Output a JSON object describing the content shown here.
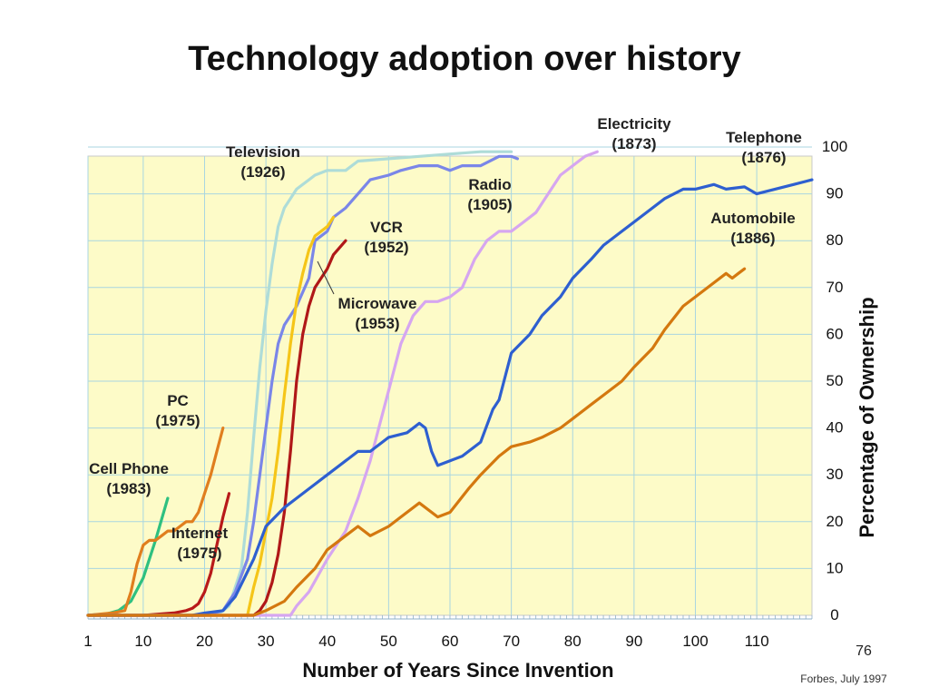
{
  "chart_data": {
    "type": "line",
    "title": "Technology adoption over history",
    "xlabel": "Number of Years Since Invention",
    "ylabel": "Percentage of Ownership",
    "xlim": [
      1,
      119
    ],
    "ylim": [
      0,
      100
    ],
    "x_ticks": [
      1,
      10,
      20,
      30,
      40,
      50,
      60,
      70,
      80,
      90,
      100,
      110
    ],
    "y_ticks": [
      0,
      10,
      20,
      30,
      40,
      50,
      60,
      70,
      80,
      90,
      100
    ],
    "grid": true,
    "background": "#fdfbc8",
    "series": [
      {
        "name": "Cell Phone",
        "year": "(1983)",
        "color": "#2ec080",
        "x": [
          1,
          4,
          6,
          8,
          10,
          12,
          14
        ],
        "y": [
          0,
          0.3,
          1,
          3,
          8,
          16,
          25
        ]
      },
      {
        "name": "PC",
        "year": "(1975)",
        "color": "#e07e1e",
        "x": [
          1,
          5,
          7,
          8,
          9,
          10,
          11,
          12,
          13,
          14,
          15,
          16,
          17,
          18,
          19,
          20,
          21,
          22,
          23
        ],
        "y": [
          0,
          0.5,
          1,
          5,
          11,
          15,
          16,
          16,
          17,
          18,
          18,
          19,
          20,
          20,
          22,
          26,
          30,
          35,
          40
        ]
      },
      {
        "name": "Internet",
        "year": "(1975)",
        "color": "#b81a1a",
        "x": [
          1,
          10,
          15,
          17,
          18,
          19,
          20,
          21,
          22,
          23,
          24
        ],
        "y": [
          0,
          0,
          0.5,
          1,
          1.5,
          2.5,
          5,
          9,
          15,
          21,
          26
        ]
      },
      {
        "name": "Television",
        "year": "(1926)",
        "color": "#aedcd8",
        "x": [
          1,
          22,
          24,
          26,
          27,
          28,
          29,
          30,
          31,
          32,
          33,
          34,
          35,
          37,
          38,
          40,
          43,
          45,
          50,
          55,
          60,
          65,
          70
        ],
        "y": [
          0,
          0,
          2,
          10,
          22,
          38,
          53,
          65,
          75,
          83,
          87,
          89,
          91,
          93,
          94,
          95,
          95,
          97,
          97.5,
          98,
          98.5,
          99,
          99
        ]
      },
      {
        "name": "Radio",
        "year": "(1905)",
        "color": "#7a86e8",
        "x": [
          1,
          20,
          23,
          25,
          27,
          28,
          29,
          30,
          31,
          32,
          33,
          35,
          37,
          38,
          40,
          41,
          43,
          45,
          47,
          50,
          52,
          55,
          58,
          60,
          62,
          65,
          68,
          70,
          71
        ],
        "y": [
          0,
          0,
          1,
          5,
          12,
          20,
          30,
          40,
          50,
          58,
          62,
          66,
          72,
          80,
          82,
          85,
          87,
          90,
          93,
          94,
          95,
          96,
          96,
          95,
          96,
          96,
          98,
          98,
          97.5
        ]
      },
      {
        "name": "VCR",
        "year": "(1952)",
        "color": "#f5c518",
        "x": [
          1,
          27,
          28,
          29,
          30,
          31,
          32,
          33,
          34,
          35,
          36,
          37,
          38,
          40,
          41
        ],
        "y": [
          0,
          0,
          6,
          11,
          18,
          25,
          35,
          47,
          58,
          67,
          73,
          78,
          81,
          83,
          85
        ]
      },
      {
        "name": "Microwave",
        "year": "(1953)",
        "color": "#b01818",
        "x": [
          1,
          28,
          29,
          30,
          31,
          32,
          33,
          34,
          35,
          36,
          37,
          38,
          40,
          41,
          43
        ],
        "y": [
          0,
          0,
          1,
          3,
          7,
          13,
          22,
          35,
          50,
          60,
          66,
          70,
          74,
          77,
          80
        ]
      },
      {
        "name": "Electricity",
        "year": "(1873)",
        "color": "#d6a6f0",
        "x": [
          1,
          34,
          35,
          37,
          40,
          43,
          45,
          47,
          48,
          50,
          52,
          54,
          56,
          58,
          60,
          62,
          64,
          66,
          68,
          70,
          72,
          74,
          76,
          78,
          80,
          82,
          84
        ],
        "y": [
          0,
          0,
          2,
          5,
          12,
          18,
          25,
          33,
          38,
          48,
          58,
          64,
          67,
          67,
          68,
          70,
          76,
          80,
          82,
          82,
          84,
          86,
          90,
          94,
          96,
          98,
          99
        ]
      },
      {
        "name": "Telephone",
        "year": "(1876)",
        "color": "#2e5fd0",
        "x": [
          1,
          18,
          20,
          23,
          25,
          28,
          30,
          33,
          35,
          38,
          40,
          43,
          45,
          47,
          50,
          53,
          55,
          56,
          57,
          58,
          60,
          62,
          65,
          67,
          68,
          70,
          73,
          75,
          78,
          80,
          83,
          85,
          88,
          90,
          93,
          95,
          98,
          100,
          103,
          105,
          108,
          110,
          113,
          116,
          119
        ],
        "y": [
          0,
          0,
          0.5,
          1,
          4,
          12,
          19,
          23,
          25,
          28,
          30,
          33,
          35,
          35,
          38,
          39,
          41,
          40,
          35,
          32,
          33,
          34,
          37,
          44,
          46,
          56,
          60,
          64,
          68,
          72,
          76,
          79,
          82,
          84,
          87,
          89,
          91,
          91,
          92,
          91,
          91.5,
          90,
          91,
          92,
          93
        ]
      },
      {
        "name": "Automobile",
        "year": "(1886)",
        "color": "#d4780f",
        "x": [
          1,
          28,
          30,
          33,
          35,
          38,
          40,
          43,
          45,
          47,
          50,
          52,
          55,
          58,
          60,
          63,
          65,
          68,
          70,
          73,
          75,
          78,
          80,
          83,
          85,
          88,
          90,
          93,
          95,
          98,
          100,
          103,
          105,
          106,
          107,
          108
        ],
        "y": [
          0,
          0,
          1,
          3,
          6,
          10,
          14,
          17,
          19,
          17,
          19,
          21,
          24,
          21,
          22,
          27,
          30,
          34,
          36,
          37,
          38,
          40,
          42,
          45,
          47,
          50,
          53,
          57,
          61,
          66,
          68,
          71,
          73,
          72,
          73,
          74
        ]
      }
    ]
  },
  "page": {
    "title": "Technology adoption over history",
    "source_note": "Forbes, July 1997",
    "slide_number": "76"
  }
}
